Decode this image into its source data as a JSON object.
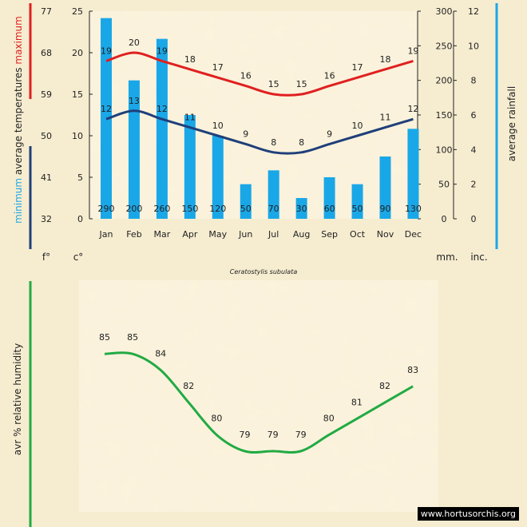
{
  "species": "Ceratostylis subulata",
  "watermark": "www.hortusorchis.org",
  "colors": {
    "max_temp": "#e02020",
    "min_temp": "#1f3f7a",
    "rainfall": "#1aa7e8",
    "humidity": "#22aa44",
    "panel_light": "#fbf3dc"
  },
  "chart_data": [
    {
      "type": "bar",
      "categories": [
        "Jan",
        "Feb",
        "Mar",
        "Apr",
        "May",
        "Jun",
        "Jul",
        "Aug",
        "Sep",
        "Oct",
        "Nov",
        "Dec"
      ],
      "series": [
        {
          "name": "average rainfall",
          "unit": "mm",
          "kind": "bar",
          "values": [
            290,
            200,
            260,
            150,
            120,
            50,
            70,
            30,
            60,
            50,
            90,
            130
          ]
        },
        {
          "name": "maximum",
          "unit": "°C",
          "kind": "line",
          "values": [
            19,
            20,
            19,
            18,
            17,
            16,
            15,
            15,
            16,
            17,
            18,
            19
          ]
        },
        {
          "name": "minimum",
          "unit": "°C",
          "kind": "line",
          "values": [
            12,
            13,
            12,
            11,
            10,
            9,
            8,
            8,
            9,
            10,
            11,
            12
          ]
        }
      ],
      "axes": {
        "fahrenheit": {
          "label": "f°",
          "ticks": [
            32,
            41,
            50,
            59,
            68,
            77
          ]
        },
        "celsius": {
          "label": "c°",
          "ticks": [
            0,
            5,
            10,
            15,
            20,
            25
          ],
          "ylim": [
            0,
            25
          ]
        },
        "rain_mm": {
          "label": "mm.",
          "ticks": [
            0,
            50,
            100,
            150,
            200,
            250,
            300
          ],
          "ylim": [
            0,
            300
          ]
        },
        "rain_inch": {
          "label": "inc.",
          "ticks": [
            0,
            2,
            4,
            6,
            8,
            10,
            12
          ],
          "ylim": [
            0,
            12
          ]
        }
      },
      "titles": {
        "temp_max": "maximum",
        "temp_avg": "average temperatures",
        "temp_min": "minimum",
        "rainfall": "average rainfall"
      }
    },
    {
      "type": "line",
      "categories": [
        "Jan",
        "Feb",
        "Mar",
        "Apr",
        "May",
        "Jun",
        "Jul",
        "Aug",
        "Sep",
        "Oct",
        "Nov",
        "Dec"
      ],
      "series": [
        {
          "name": "avr % relative humidity",
          "values": [
            85,
            85,
            84,
            82,
            80,
            79,
            79,
            79,
            80,
            81,
            82,
            83
          ]
        }
      ],
      "ylabel": "avr % relative humidity"
    }
  ]
}
